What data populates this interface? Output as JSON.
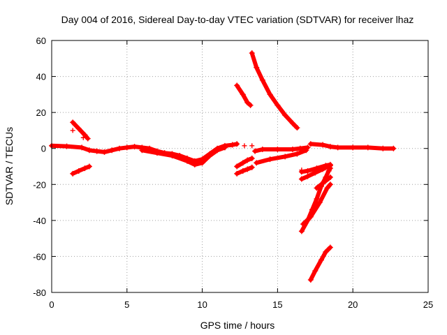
{
  "chart_data": {
    "type": "scatter",
    "title": "Day 004 of 2016, Sidereal Day-to-day VTEC variation (SDTVAR) for receiver lhaz",
    "xlabel": "GPS time / hours",
    "ylabel": "SDTVAR / TECUs",
    "xlim": [
      0,
      25
    ],
    "ylim": [
      -80,
      60
    ],
    "xticks": [
      0,
      5,
      10,
      15,
      20,
      25
    ],
    "yticks": [
      -80,
      -60,
      -40,
      -20,
      0,
      20,
      40,
      60
    ],
    "xtick_labels": [
      "0",
      "5",
      "10",
      "15",
      "20",
      "25"
    ],
    "ytick_labels": [
      "-80",
      "-60",
      "-40",
      "-20",
      "0",
      "20",
      "40",
      "60"
    ],
    "grid": true,
    "marker": "+",
    "color": "#ff0000",
    "series": [
      {
        "name": "main-band",
        "points": [
          [
            0.0,
            1.5
          ],
          [
            1.0,
            1.2
          ],
          [
            2.0,
            0.5
          ],
          [
            2.5,
            -1.0
          ],
          [
            3.0,
            -1.5
          ],
          [
            3.5,
            -2.0
          ],
          [
            4.0,
            -1.0
          ],
          [
            4.5,
            0.0
          ],
          [
            5.0,
            0.5
          ],
          [
            5.5,
            1.0
          ],
          [
            6.0,
            0.5
          ],
          [
            6.5,
            0.0
          ],
          [
            7.0,
            -1.5
          ],
          [
            7.5,
            -2.5
          ],
          [
            8.0,
            -3.0
          ],
          [
            8.5,
            -4.0
          ],
          [
            9.0,
            -5.5
          ],
          [
            9.5,
            -7.0
          ],
          [
            10.0,
            -6.0
          ],
          [
            10.5,
            -3.0
          ],
          [
            11.0,
            0.0
          ],
          [
            11.5,
            1.5
          ],
          [
            12.0,
            2.0
          ],
          [
            12.3,
            2.5
          ]
        ]
      },
      {
        "name": "band-low",
        "points": [
          [
            6.0,
            -1.0
          ],
          [
            7.0,
            -2.5
          ],
          [
            8.0,
            -4.0
          ],
          [
            9.0,
            -7.0
          ],
          [
            9.5,
            -9.0
          ],
          [
            10.0,
            -8.0
          ],
          [
            10.5,
            -4.0
          ],
          [
            11.0,
            -1.0
          ],
          [
            11.5,
            0.5
          ]
        ]
      },
      {
        "name": "pos-arc-early",
        "points": [
          [
            1.4,
            14.5
          ],
          [
            1.8,
            11.0
          ],
          [
            2.2,
            7.5
          ],
          [
            2.4,
            5.5
          ]
        ]
      },
      {
        "name": "neg-arc-early",
        "points": [
          [
            1.4,
            -14.0
          ],
          [
            1.8,
            -12.5
          ],
          [
            2.2,
            -11.0
          ],
          [
            2.5,
            -10.0
          ]
        ]
      },
      {
        "name": "pos-arc-13h",
        "points": [
          [
            12.3,
            35.0
          ],
          [
            12.7,
            30.0
          ],
          [
            13.0,
            25.5
          ],
          [
            13.2,
            24.0
          ]
        ]
      },
      {
        "name": "neg-arcs-13h",
        "points": [
          [
            12.3,
            -14.0
          ],
          [
            12.7,
            -12.5
          ],
          [
            13.0,
            -11.5
          ],
          [
            13.3,
            -10.5
          ]
        ]
      },
      {
        "name": "neg-arcs-13h-b",
        "points": [
          [
            12.3,
            -10.0
          ],
          [
            12.7,
            -8.0
          ],
          [
            13.0,
            -6.5
          ],
          [
            13.3,
            -5.5
          ]
        ]
      },
      {
        "name": "post-13h-band",
        "points": [
          [
            13.5,
            -1.5
          ],
          [
            14.0,
            -0.5
          ],
          [
            15.0,
            -0.5
          ],
          [
            16.0,
            -0.5
          ],
          [
            16.5,
            0.0
          ],
          [
            17.0,
            0.5
          ]
        ]
      },
      {
        "name": "rising-band",
        "points": [
          [
            13.6,
            -8.0
          ],
          [
            14.5,
            -6.0
          ],
          [
            15.5,
            -4.5
          ],
          [
            16.3,
            -3.0
          ],
          [
            16.9,
            -1.0
          ]
        ]
      },
      {
        "name": "falling-arc",
        "points": [
          [
            13.3,
            53.0
          ],
          [
            13.6,
            45.0
          ],
          [
            14.0,
            38.0
          ],
          [
            14.5,
            30.0
          ],
          [
            15.0,
            24.0
          ],
          [
            15.5,
            18.5
          ],
          [
            16.0,
            14.0
          ],
          [
            16.3,
            11.5
          ]
        ]
      },
      {
        "name": "late-band",
        "points": [
          [
            17.2,
            2.5
          ],
          [
            18.0,
            2.0
          ],
          [
            18.5,
            1.0
          ],
          [
            19.0,
            0.5
          ],
          [
            20.0,
            0.5
          ],
          [
            21.0,
            0.5
          ],
          [
            22.0,
            0.0
          ],
          [
            22.7,
            0.0
          ]
        ]
      },
      {
        "name": "late-cluster-a",
        "points": [
          [
            16.6,
            -13.0
          ],
          [
            17.0,
            -12.5
          ],
          [
            17.6,
            -11.0
          ],
          [
            18.2,
            -9.5
          ],
          [
            18.5,
            -9.0
          ]
        ]
      },
      {
        "name": "late-cluster-b",
        "points": [
          [
            16.6,
            -17.0
          ],
          [
            17.0,
            -15.5
          ],
          [
            17.5,
            -13.5
          ],
          [
            18.0,
            -11.5
          ],
          [
            18.5,
            -9.5
          ]
        ]
      },
      {
        "name": "late-cluster-c",
        "points": [
          [
            17.6,
            -22.0
          ],
          [
            17.9,
            -20.0
          ],
          [
            18.2,
            -18.0
          ],
          [
            18.5,
            -16.0
          ]
        ]
      },
      {
        "name": "steep-drop-a",
        "points": [
          [
            16.6,
            -46.0
          ],
          [
            17.0,
            -40.0
          ],
          [
            17.3,
            -34.0
          ],
          [
            17.6,
            -28.0
          ],
          [
            17.9,
            -21.0
          ],
          [
            18.2,
            -16.0
          ],
          [
            18.4,
            -12.5
          ],
          [
            18.5,
            -11.0
          ]
        ]
      },
      {
        "name": "steep-drop-b",
        "points": [
          [
            16.7,
            -42.0
          ],
          [
            17.2,
            -38.0
          ],
          [
            17.8,
            -30.0
          ],
          [
            18.3,
            -22.0
          ],
          [
            18.5,
            -20.0
          ]
        ]
      },
      {
        "name": "deep-arc",
        "points": [
          [
            17.2,
            -73.0
          ],
          [
            17.5,
            -68.0
          ],
          [
            17.9,
            -62.0
          ],
          [
            18.2,
            -57.5
          ],
          [
            18.5,
            -55.0
          ]
        ]
      }
    ],
    "isolated_points": [
      [
        1.4,
        10.0
      ],
      [
        2.1,
        6.0
      ],
      [
        12.8,
        1.5
      ],
      [
        13.3,
        1.5
      ],
      [
        16.6,
        -12.0
      ]
    ]
  }
}
